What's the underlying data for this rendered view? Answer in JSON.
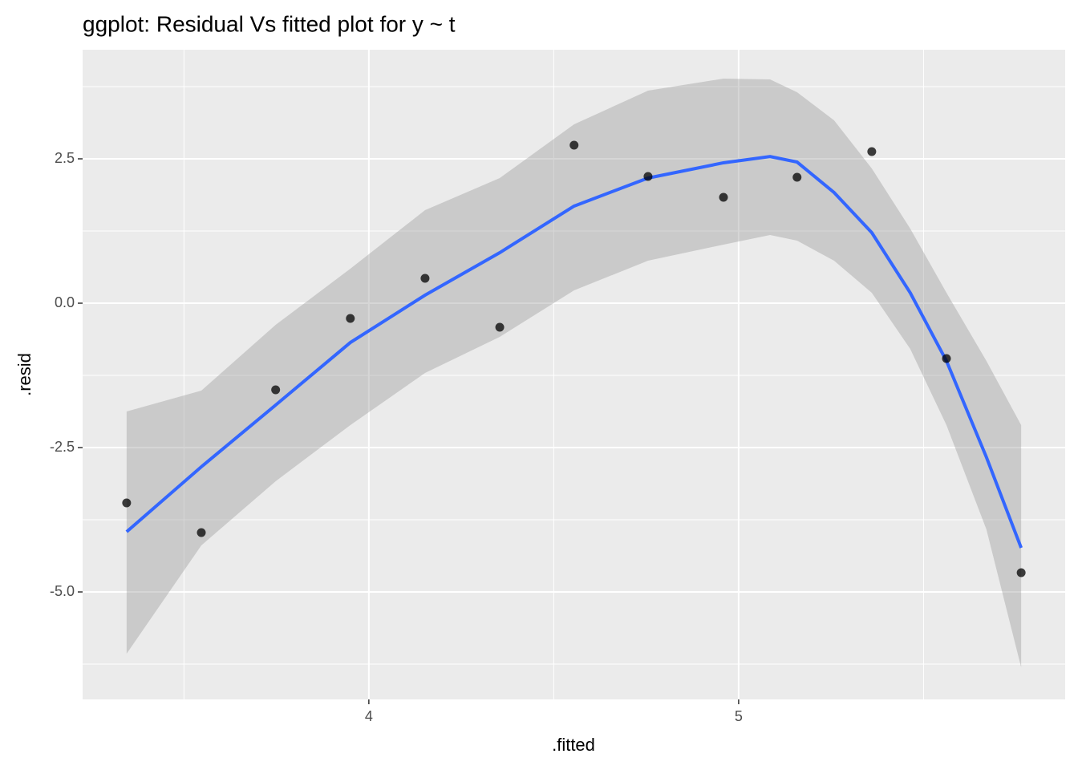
{
  "chart_data": {
    "type": "scatter",
    "title": "ggplot: Residual Vs fitted plot for y ~ t",
    "x_label": ".fitted",
    "y_label": ".resid",
    "xlim": [
      3.226,
      5.883
    ],
    "ylim": [
      -6.861,
      4.389
    ],
    "xticks": [
      4,
      5
    ],
    "xminor": [
      3.5,
      4.5,
      5.5
    ],
    "yticks": [
      {
        "value": -5,
        "label": "-5.0"
      },
      -2.5,
      {
        "value": 0,
        "label": "0.0"
      },
      2.5
    ],
    "yminor": [
      -6.25,
      -3.75,
      -1.25,
      1.25,
      3.75
    ],
    "grid": true,
    "points": {
      "color": "#000000",
      "x": [
        3.345,
        3.547,
        3.748,
        3.95,
        4.152,
        4.354,
        4.555,
        4.755,
        4.959,
        5.158,
        5.36,
        5.562,
        5.764
      ],
      "y": [
        -3.458,
        -3.972,
        -1.5,
        -0.264,
        0.431,
        -0.417,
        2.736,
        2.194,
        1.833,
        2.181,
        2.625,
        -0.958,
        -4.667
      ]
    },
    "smooth": {
      "color": "#3366ff",
      "band_color": "#999999",
      "x": [
        3.345,
        3.547,
        3.748,
        3.95,
        4.152,
        4.354,
        4.555,
        4.755,
        4.959,
        5.085,
        5.158,
        5.258,
        5.36,
        5.464,
        5.562,
        5.67,
        5.764
      ],
      "y": [
        -3.958,
        -2.833,
        -1.764,
        -0.681,
        0.139,
        0.875,
        1.681,
        2.167,
        2.431,
        2.54,
        2.444,
        1.917,
        1.222,
        0.18,
        -1.0,
        -2.667,
        -4.236
      ],
      "upper": [
        -1.875,
        -1.514,
        -0.375,
        0.597,
        1.611,
        2.167,
        3.097,
        3.681,
        3.889,
        3.875,
        3.653,
        3.167,
        2.333,
        1.292,
        0.181,
        -1.0,
        -2.111
      ],
      "lower": [
        -6.069,
        -4.194,
        -3.083,
        -2.111,
        -1.208,
        -0.583,
        0.222,
        0.736,
        1.014,
        1.181,
        1.083,
        0.736,
        0.181,
        -0.792,
        -2.111,
        -3.917,
        -6.306
      ]
    }
  }
}
